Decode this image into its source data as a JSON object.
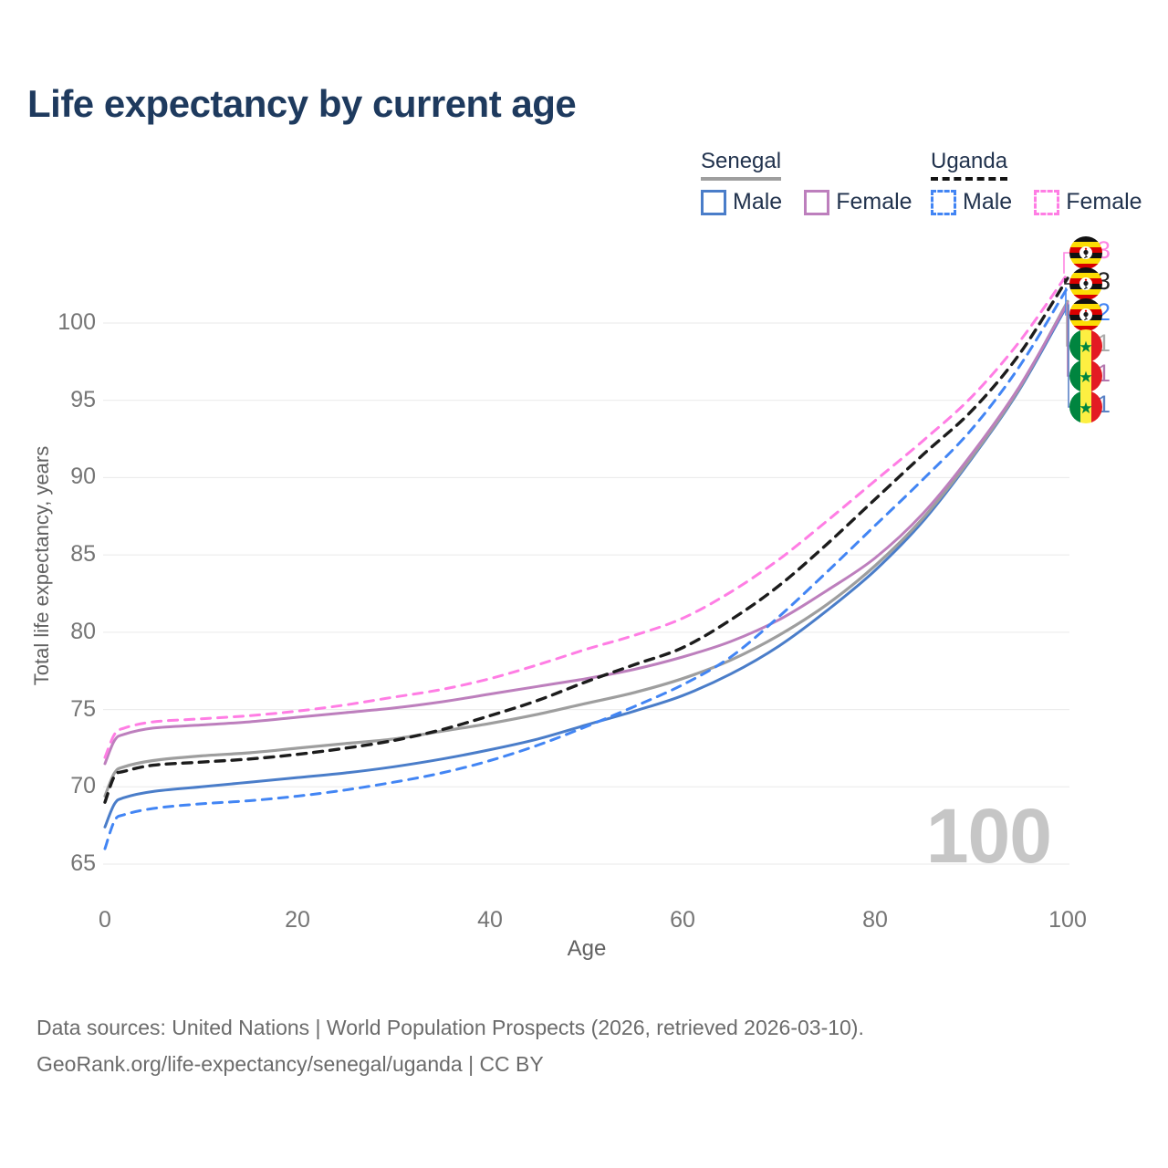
{
  "title": "Life expectancy by current age",
  "legend": {
    "groups": [
      {
        "label": "Senegal",
        "line_style": "solid",
        "underline_color": "#9e9e9e",
        "items": [
          {
            "label": "Male",
            "color": "#4a7dc9"
          },
          {
            "label": "Female",
            "color": "#bd7fbd"
          }
        ]
      },
      {
        "label": "Uganda",
        "line_style": "dashed",
        "underline_color": "#141414",
        "items": [
          {
            "label": "Male",
            "color": "#4285f4"
          },
          {
            "label": "Female",
            "color": "#ff7de4"
          }
        ]
      }
    ]
  },
  "chart_data": {
    "type": "line",
    "title": "Life expectancy by current age",
    "xlabel": "Age",
    "ylabel": "Total life expectancy, years",
    "xlim": [
      0,
      100
    ],
    "ylim": [
      65,
      104
    ],
    "xticks": [
      0,
      20,
      40,
      60,
      80,
      100
    ],
    "yticks": [
      65,
      70,
      75,
      80,
      85,
      90,
      95,
      100
    ],
    "grid": "horizontal",
    "legend_position": "top-right",
    "x": [
      0,
      1,
      2,
      5,
      10,
      15,
      20,
      25,
      30,
      35,
      40,
      45,
      50,
      55,
      60,
      65,
      70,
      75,
      80,
      85,
      90,
      95,
      100
    ],
    "series": [
      {
        "id": "senegal-male",
        "name": "Senegal Male",
        "country": "Senegal",
        "sex": "Male",
        "color": "#4a7dc9",
        "style": "solid",
        "width": 3,
        "values": [
          67.4,
          68.9,
          69.3,
          69.7,
          70.0,
          70.3,
          70.6,
          70.9,
          71.3,
          71.8,
          72.4,
          73.1,
          74.0,
          74.9,
          75.9,
          77.3,
          79.1,
          81.4,
          84.0,
          87.2,
          91.2,
          95.7,
          101.2
        ]
      },
      {
        "id": "senegal-total",
        "name": "Senegal (both sexes)",
        "country": "Senegal",
        "sex": "Both",
        "color": "#9e9e9e",
        "style": "solid",
        "width": 3.2,
        "values": [
          69.4,
          70.9,
          71.3,
          71.7,
          72.0,
          72.2,
          72.5,
          72.8,
          73.1,
          73.6,
          74.1,
          74.7,
          75.4,
          76.1,
          77.0,
          78.2,
          79.8,
          81.8,
          84.3,
          87.4,
          91.3,
          95.8,
          101.4
        ]
      },
      {
        "id": "senegal-female",
        "name": "Senegal Female",
        "country": "Senegal",
        "sex": "Female",
        "color": "#bd7fbd",
        "style": "solid",
        "width": 3,
        "values": [
          71.5,
          73.0,
          73.4,
          73.8,
          74.0,
          74.2,
          74.5,
          74.8,
          75.1,
          75.5,
          76.0,
          76.5,
          77.0,
          77.6,
          78.4,
          79.4,
          80.8,
          82.7,
          84.8,
          87.7,
          91.5,
          95.9,
          101.3
        ]
      },
      {
        "id": "uganda-male",
        "name": "Uganda Male",
        "country": "Uganda",
        "sex": "Male",
        "color": "#4285f4",
        "style": "dashed",
        "width": 3,
        "values": [
          66.0,
          67.8,
          68.2,
          68.6,
          68.9,
          69.1,
          69.4,
          69.8,
          70.3,
          70.9,
          71.7,
          72.7,
          73.9,
          75.2,
          76.6,
          78.4,
          81.0,
          83.9,
          86.9,
          89.9,
          93.1,
          97.2,
          102.3
        ]
      },
      {
        "id": "uganda-total",
        "name": "Uganda (both sexes)",
        "country": "Uganda",
        "sex": "Both",
        "color": "#1c1c1c",
        "style": "dashed",
        "width": 3.4,
        "values": [
          69.0,
          70.7,
          71.0,
          71.4,
          71.6,
          71.8,
          72.1,
          72.5,
          73.0,
          73.7,
          74.6,
          75.6,
          76.8,
          77.9,
          79.0,
          80.8,
          83.0,
          85.7,
          88.6,
          91.5,
          94.3,
          98.0,
          102.9
        ]
      },
      {
        "id": "uganda-female",
        "name": "Uganda Female",
        "country": "Uganda",
        "sex": "Female",
        "color": "#ff7de4",
        "style": "dashed",
        "width": 3,
        "values": [
          71.9,
          73.4,
          73.8,
          74.2,
          74.4,
          74.6,
          74.9,
          75.3,
          75.8,
          76.3,
          77.0,
          77.9,
          78.9,
          79.8,
          80.9,
          82.6,
          84.7,
          87.2,
          89.8,
          92.4,
          95.2,
          98.8,
          103.2
        ]
      }
    ],
    "end_labels": [
      {
        "value": "103",
        "series_id": "uganda-female",
        "country": "Uganda",
        "color": "#ff85e2"
      },
      {
        "value": "103",
        "series_id": "uganda-total",
        "country": "Uganda",
        "color": "#212121"
      },
      {
        "value": "102",
        "series_id": "uganda-male",
        "country": "Uganda",
        "color": "#4285f4"
      },
      {
        "value": "101",
        "series_id": "senegal-total",
        "country": "Senegal",
        "color": "#ababab"
      },
      {
        "value": "101",
        "series_id": "senegal-female",
        "country": "Senegal",
        "color": "#b377ae"
      },
      {
        "value": "101",
        "series_id": "senegal-male",
        "country": "Senegal",
        "color": "#5a82c6"
      }
    ]
  },
  "watermark": "100",
  "footer": {
    "line1": "Data sources: United Nations | World Population Prospects (2026, retrieved 2026-03-10).",
    "line2": "GeoRank.org/life-expectancy/senegal/uganda | CC BY"
  }
}
